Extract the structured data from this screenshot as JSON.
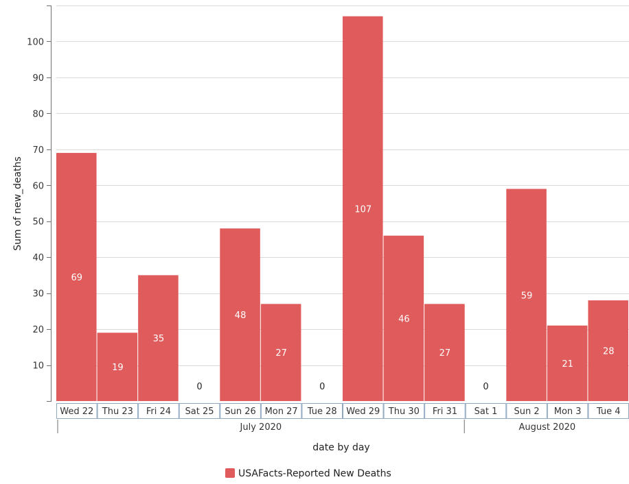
{
  "chart_data": {
    "type": "bar",
    "categories": [
      "Wed 22",
      "Thu 23",
      "Fri 24",
      "Sat 25",
      "Sun 26",
      "Mon 27",
      "Tue 28",
      "Wed 29",
      "Thu 30",
      "Fri 31",
      "Sat 1",
      "Sun 2",
      "Mon 3",
      "Tue 4"
    ],
    "groups": [
      {
        "label": "July 2020",
        "start": 0,
        "end": 9
      },
      {
        "label": "August 2020",
        "start": 10,
        "end": 13
      }
    ],
    "series": [
      {
        "name": "USAFacts-Reported New Deaths",
        "color": "#e05c5c",
        "values": [
          69,
          19,
          35,
          0,
          48,
          27,
          0,
          107,
          46,
          27,
          0,
          59,
          21,
          28
        ]
      }
    ],
    "xlabel": "date by day",
    "ylabel": "Sum of new_deaths",
    "ylim": [
      0,
      110
    ],
    "yticks": [
      10,
      20,
      30,
      40,
      50,
      60,
      70,
      80,
      90,
      100
    ],
    "grid": true,
    "legend": "bottom-center"
  }
}
